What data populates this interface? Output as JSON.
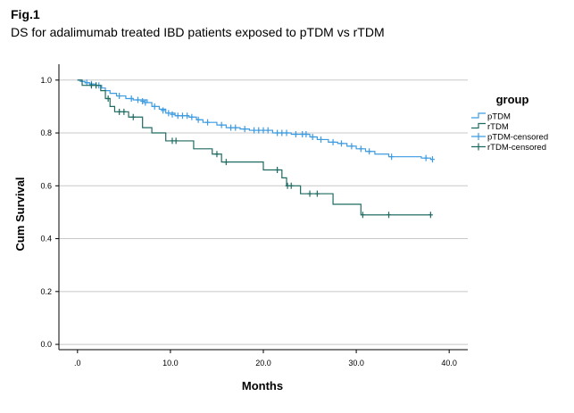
{
  "figure": {
    "label": "Fig.1",
    "caption": "DS for adalimumab treated IBD patients exposed to pTDM vs rTDM"
  },
  "chart_data": {
    "type": "line",
    "subtype": "kaplan-meier",
    "xlabel": "Months",
    "ylabel": "Cum Survival",
    "xlim": [
      -2,
      42
    ],
    "ylim": [
      -0.02,
      1.06
    ],
    "xticks": [
      0,
      10,
      20,
      30,
      40
    ],
    "xtick_labels": [
      ".0",
      "10.0",
      "20.0",
      "30.0",
      "40.0"
    ],
    "yticks": [
      0,
      0.2,
      0.4,
      0.6,
      0.8,
      1.0
    ],
    "ytick_labels": [
      "0.0",
      "0.2",
      "0.4",
      "0.6",
      "0.8",
      "1.0"
    ],
    "grid": "horizontal",
    "legend": {
      "title": "group",
      "placement": "top-right",
      "entries": [
        "pTDM",
        "rTDM",
        "pTDM-censored",
        "rTDM-censored"
      ]
    },
    "series": [
      {
        "name": "pTDM",
        "color": "#3d9be0",
        "steps": [
          [
            0,
            1.0
          ],
          [
            0.3,
            0.995
          ],
          [
            0.8,
            0.99
          ],
          [
            1.3,
            0.985
          ],
          [
            2.0,
            0.98
          ],
          [
            2.6,
            0.97
          ],
          [
            3.0,
            0.96
          ],
          [
            3.5,
            0.95
          ],
          [
            4.2,
            0.94
          ],
          [
            5.2,
            0.93
          ],
          [
            6.0,
            0.925
          ],
          [
            7.5,
            0.915
          ],
          [
            8.0,
            0.9
          ],
          [
            8.8,
            0.89
          ],
          [
            9.5,
            0.875
          ],
          [
            10.5,
            0.865
          ],
          [
            12.0,
            0.86
          ],
          [
            12.8,
            0.85
          ],
          [
            13.5,
            0.84
          ],
          [
            15.0,
            0.83
          ],
          [
            16.0,
            0.82
          ],
          [
            17.5,
            0.815
          ],
          [
            18.5,
            0.81
          ],
          [
            21.0,
            0.8
          ],
          [
            23.0,
            0.795
          ],
          [
            25.0,
            0.785
          ],
          [
            25.8,
            0.775
          ],
          [
            27.0,
            0.765
          ],
          [
            28.0,
            0.76
          ],
          [
            29.0,
            0.75
          ],
          [
            30.0,
            0.74
          ],
          [
            31.0,
            0.73
          ],
          [
            32.0,
            0.72
          ],
          [
            33.5,
            0.71
          ],
          [
            37.0,
            0.705
          ],
          [
            38.0,
            0.7
          ]
        ],
        "censored": [
          [
            1.0,
            0.99
          ],
          [
            1.5,
            0.985
          ],
          [
            2.3,
            0.98
          ],
          [
            4.5,
            0.94
          ],
          [
            5.8,
            0.93
          ],
          [
            6.5,
            0.925
          ],
          [
            7.0,
            0.92
          ],
          [
            7.3,
            0.915
          ],
          [
            8.3,
            0.9
          ],
          [
            9.2,
            0.885
          ],
          [
            9.8,
            0.875
          ],
          [
            10.2,
            0.87
          ],
          [
            10.8,
            0.865
          ],
          [
            11.3,
            0.865
          ],
          [
            11.8,
            0.865
          ],
          [
            12.3,
            0.86
          ],
          [
            13.0,
            0.85
          ],
          [
            14.0,
            0.84
          ],
          [
            15.5,
            0.83
          ],
          [
            16.5,
            0.82
          ],
          [
            17.0,
            0.82
          ],
          [
            18.0,
            0.815
          ],
          [
            19.0,
            0.81
          ],
          [
            19.5,
            0.81
          ],
          [
            20.0,
            0.81
          ],
          [
            20.5,
            0.81
          ],
          [
            21.5,
            0.8
          ],
          [
            22.0,
            0.8
          ],
          [
            22.5,
            0.8
          ],
          [
            23.5,
            0.795
          ],
          [
            24.2,
            0.795
          ],
          [
            24.6,
            0.795
          ],
          [
            25.3,
            0.785
          ],
          [
            26.2,
            0.775
          ],
          [
            27.5,
            0.765
          ],
          [
            28.4,
            0.76
          ],
          [
            29.5,
            0.75
          ],
          [
            30.5,
            0.74
          ],
          [
            31.4,
            0.73
          ],
          [
            33.8,
            0.71
          ],
          [
            37.5,
            0.705
          ],
          [
            38.2,
            0.7
          ]
        ]
      },
      {
        "name": "rTDM",
        "color": "#1f6b62",
        "steps": [
          [
            0,
            1.0
          ],
          [
            0.5,
            0.98
          ],
          [
            2.5,
            0.96
          ],
          [
            3.0,
            0.93
          ],
          [
            3.5,
            0.9
          ],
          [
            4.0,
            0.88
          ],
          [
            5.5,
            0.86
          ],
          [
            7.0,
            0.82
          ],
          [
            8.0,
            0.8
          ],
          [
            9.5,
            0.77
          ],
          [
            12.5,
            0.74
          ],
          [
            14.5,
            0.72
          ],
          [
            15.5,
            0.69
          ],
          [
            20.0,
            0.66
          ],
          [
            22.0,
            0.63
          ],
          [
            22.5,
            0.6
          ],
          [
            24.0,
            0.57
          ],
          [
            27.5,
            0.53
          ],
          [
            30.5,
            0.49
          ]
        ],
        "censored": [
          [
            1.5,
            0.98
          ],
          [
            2.0,
            0.98
          ],
          [
            3.3,
            0.93
          ],
          [
            4.5,
            0.88
          ],
          [
            5.0,
            0.88
          ],
          [
            6.0,
            0.86
          ],
          [
            10.2,
            0.77
          ],
          [
            10.6,
            0.77
          ],
          [
            15.0,
            0.72
          ],
          [
            16.0,
            0.69
          ],
          [
            21.5,
            0.66
          ],
          [
            22.6,
            0.6
          ],
          [
            23.0,
            0.6
          ],
          [
            25.0,
            0.57
          ],
          [
            25.8,
            0.57
          ],
          [
            30.7,
            0.49
          ],
          [
            33.5,
            0.49
          ],
          [
            38.0,
            0.49
          ]
        ]
      }
    ]
  }
}
